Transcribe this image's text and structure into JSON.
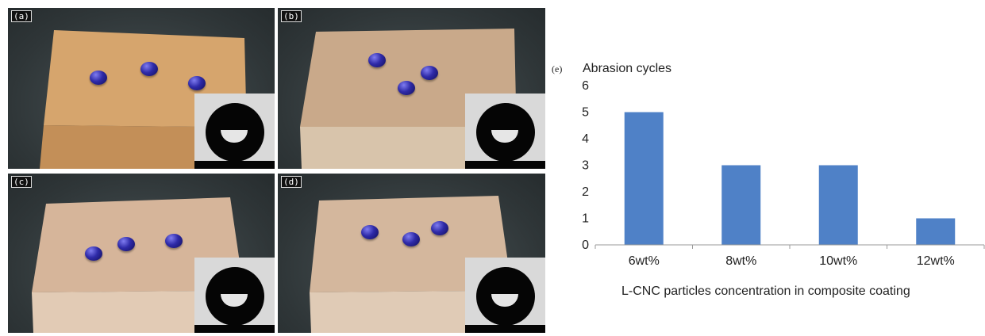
{
  "panels": [
    {
      "label": "(a)"
    },
    {
      "label": "(b)"
    },
    {
      "label": "(c)"
    },
    {
      "label": "(d)"
    }
  ],
  "chart_data": {
    "type": "bar",
    "panel_label": "(e)",
    "ylabel": "Abrasion cycles",
    "xlabel": "L-CNC particles concentration in composite coating",
    "categories": [
      "6wt%",
      "8wt%",
      "10wt%",
      "12wt%"
    ],
    "values": [
      5,
      3,
      3,
      1
    ],
    "ylim": [
      0,
      6
    ],
    "yticks": [
      "0",
      "1",
      "2",
      "3",
      "4",
      "5",
      "6"
    ],
    "bar_color": "#4f81c7",
    "grid": false
  }
}
